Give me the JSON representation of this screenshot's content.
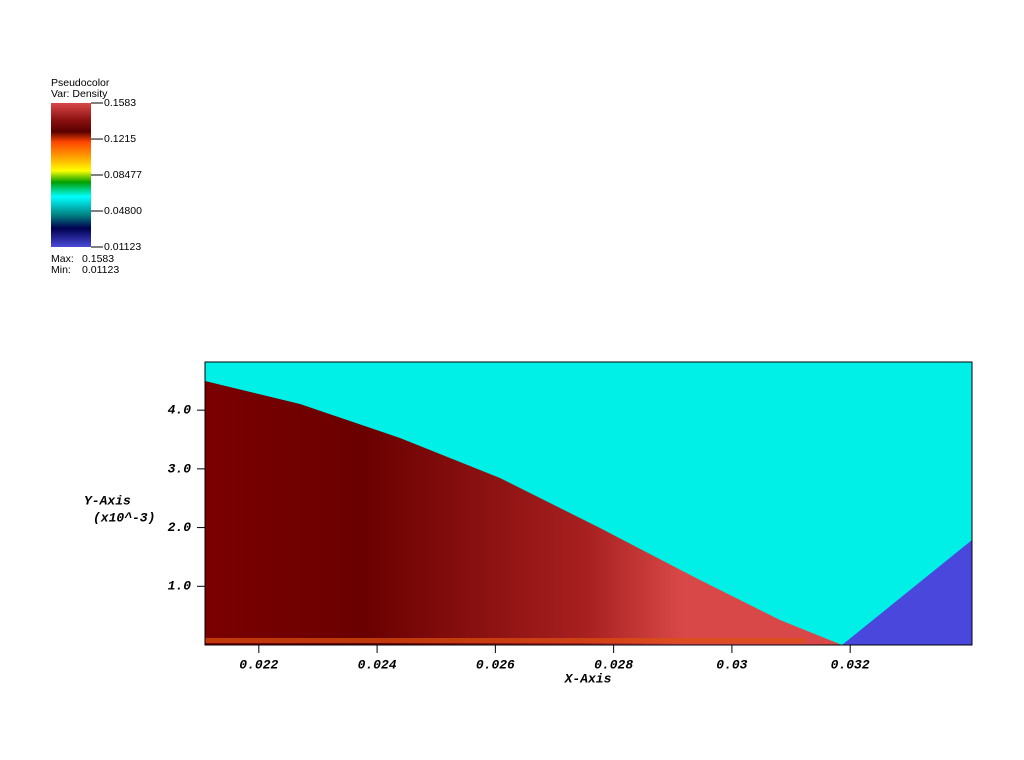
{
  "chart_data": {
    "type": "pseudocolor",
    "legend_title": "Pseudocolor",
    "legend_var": "Var: Density",
    "colorbar": {
      "ticks": [
        0.1583,
        0.1215,
        0.08477,
        {
          "value": 0.048,
          "label": "0.04800"
        },
        0.01123
      ],
      "max_label": "Max:",
      "max": 0.1583,
      "min_label": "Min:",
      "min": 0.01123
    },
    "x_label": "X-Axis",
    "y_label": "Y-Axis",
    "y_label_units": "(x10^-3)",
    "xlim": [
      0.02109,
      0.03406
    ],
    "xticks": [
      0.022,
      0.024,
      0.026,
      0.028,
      0.03,
      0.032
    ],
    "ylim": [
      0,
      4.82
    ],
    "yticks": [
      {
        "value": 1,
        "label": "1.0"
      },
      {
        "value": 2,
        "label": "2.0"
      },
      {
        "value": 3,
        "label": "3.0"
      },
      {
        "value": 4,
        "label": "4.0"
      }
    ]
  }
}
